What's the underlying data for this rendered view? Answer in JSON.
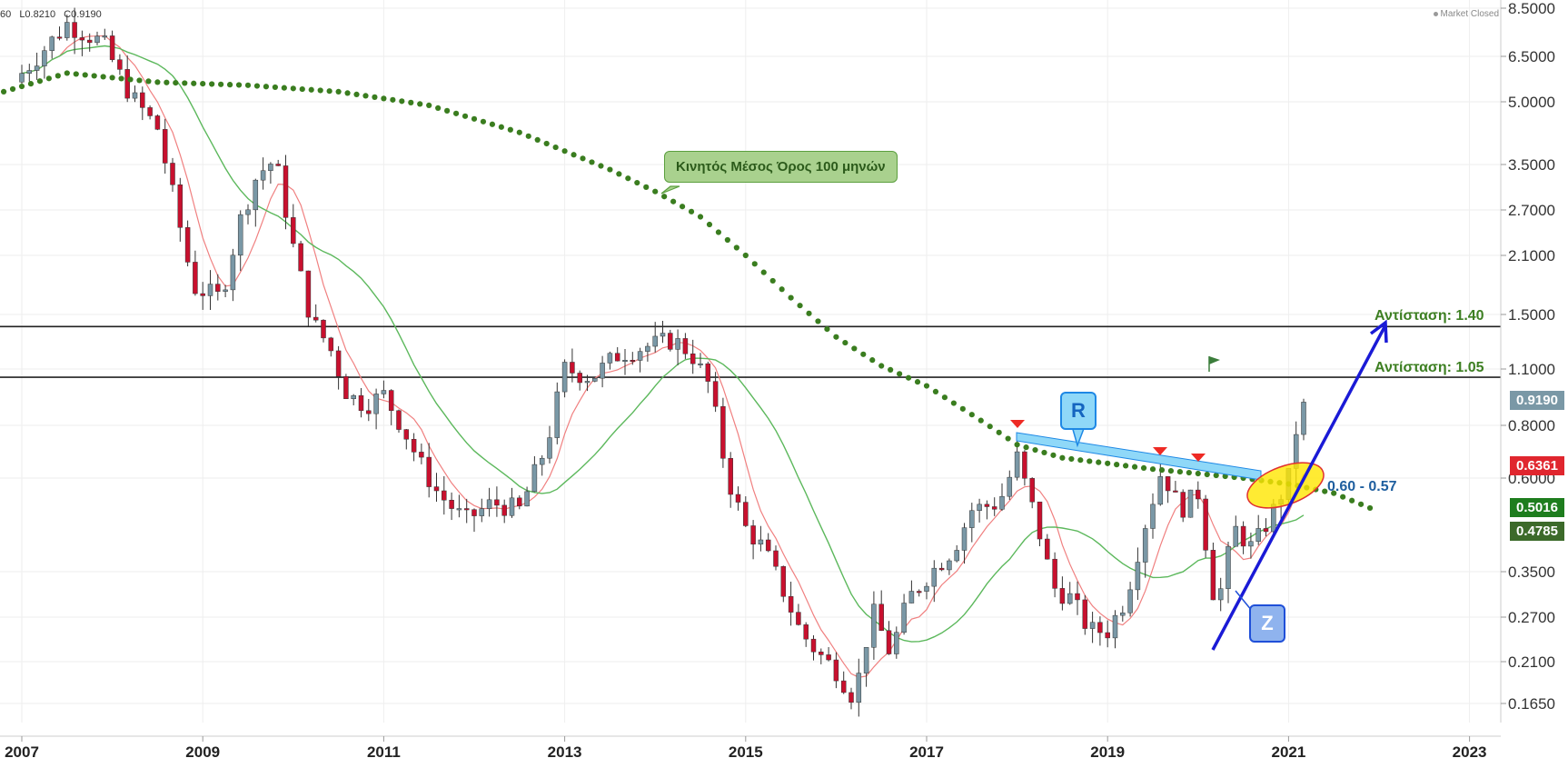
{
  "legend": {
    "open_partial": "60",
    "low": "L0.8210",
    "close": "C0.9190"
  },
  "status": "Market Closed",
  "annotations": {
    "ma_label": "Κινητός Μέσος Όρος 100 μηνών",
    "resistance_1": "Αντίσταση: 1.40",
    "resistance_2": "Αντίσταση: 1.05",
    "zone": "0.60 - 0.57",
    "r_letter": "R",
    "z_letter": "Z"
  },
  "price_tags": {
    "last": "0.9190",
    "ma_fast": "0.6361",
    "ma_mid": "0.5016",
    "ma_slow": "0.4785"
  },
  "colors": {
    "up": "#7a98a6",
    "down": "#c8102e",
    "ma_fast": "#f08080",
    "ma_mid": "#5cb85c",
    "ma_long": "#3a7d1f",
    "trendline": "#1a1ad6",
    "tag_last": "#7a98a6",
    "tag_fast": "#e0262e",
    "tag_mid": "#1e7d1e",
    "tag_slow": "#3c6a2a"
  },
  "chart_data": {
    "type": "candlestick",
    "scale": "log",
    "ylim": [
      0.15,
      8.5
    ],
    "y_ticks": [
      "8.5000",
      "6.5000",
      "5.0000",
      "3.5000",
      "2.7000",
      "2.1000",
      "1.5000",
      "1.1000",
      "0.8000",
      "0.6000",
      "0.3500",
      "0.2700",
      "0.2100",
      "0.1650"
    ],
    "y_tick_values": [
      8.5,
      6.5,
      5.0,
      3.5,
      2.7,
      2.1,
      1.5,
      1.1,
      0.8,
      0.6,
      0.35,
      0.27,
      0.21,
      0.165
    ],
    "x_ticks": [
      "2007",
      "2009",
      "2011",
      "2013",
      "2015",
      "2017",
      "2019",
      "2021",
      "2023"
    ],
    "x_tick_values": [
      2007,
      2009,
      2011,
      2013,
      2015,
      2017,
      2019,
      2021,
      2023
    ],
    "xlim": [
      2007,
      2023.4
    ],
    "horizontal_lines": [
      1.4,
      1.05
    ],
    "closes": [
      [
        2007.0,
        5.9
      ],
      [
        2007.5,
        7.8
      ],
      [
        2007.9,
        7.0
      ],
      [
        2008.2,
        5.2
      ],
      [
        2008.5,
        4.3
      ],
      [
        2008.9,
        1.75
      ],
      [
        2009.2,
        1.65
      ],
      [
        2009.4,
        2.5
      ],
      [
        2009.6,
        3.3
      ],
      [
        2009.8,
        3.6
      ],
      [
        2010.0,
        2.2
      ],
      [
        2010.2,
        1.45
      ],
      [
        2010.4,
        1.25
      ],
      [
        2010.6,
        0.95
      ],
      [
        2010.8,
        0.9
      ],
      [
        2011.0,
        0.95
      ],
      [
        2011.2,
        0.8
      ],
      [
        2011.4,
        0.65
      ],
      [
        2011.6,
        0.55
      ],
      [
        2011.9,
        0.47
      ],
      [
        2012.2,
        0.52
      ],
      [
        2012.5,
        0.5
      ],
      [
        2012.8,
        0.72
      ],
      [
        2013.0,
        1.1
      ],
      [
        2013.3,
        1.05
      ],
      [
        2013.6,
        1.2
      ],
      [
        2013.9,
        1.25
      ],
      [
        2014.2,
        1.3
      ],
      [
        2014.4,
        1.2
      ],
      [
        2014.6,
        1.0
      ],
      [
        2014.8,
        0.6
      ],
      [
        2015.0,
        0.45
      ],
      [
        2015.2,
        0.4
      ],
      [
        2015.4,
        0.32
      ],
      [
        2015.6,
        0.25
      ],
      [
        2015.8,
        0.22
      ],
      [
        2016.0,
        0.2
      ],
      [
        2016.2,
        0.17
      ],
      [
        2016.4,
        0.28
      ],
      [
        2016.6,
        0.22
      ],
      [
        2016.8,
        0.3
      ],
      [
        2017.0,
        0.34
      ],
      [
        2017.3,
        0.4
      ],
      [
        2017.5,
        0.5
      ],
      [
        2017.8,
        0.52
      ],
      [
        2018.0,
        0.67
      ],
      [
        2018.2,
        0.48
      ],
      [
        2018.4,
        0.32
      ],
      [
        2018.6,
        0.3
      ],
      [
        2018.8,
        0.25
      ],
      [
        2019.0,
        0.25
      ],
      [
        2019.2,
        0.3
      ],
      [
        2019.4,
        0.45
      ],
      [
        2019.6,
        0.63
      ],
      [
        2019.8,
        0.5
      ],
      [
        2020.0,
        0.55
      ],
      [
        2020.2,
        0.28
      ],
      [
        2020.4,
        0.45
      ],
      [
        2020.6,
        0.4
      ],
      [
        2020.8,
        0.48
      ],
      [
        2021.0,
        0.6
      ],
      [
        2021.1,
        0.82
      ],
      [
        2021.2,
        0.919
      ]
    ],
    "series": [
      {
        "name": "",
        "kind": "ma_fast"
      },
      {
        "name": "",
        "kind": "ma_mid"
      },
      {
        "name": "Κινητός Μέσος Όρος 100 μηνών",
        "kind": "ma_long"
      }
    ]
  }
}
